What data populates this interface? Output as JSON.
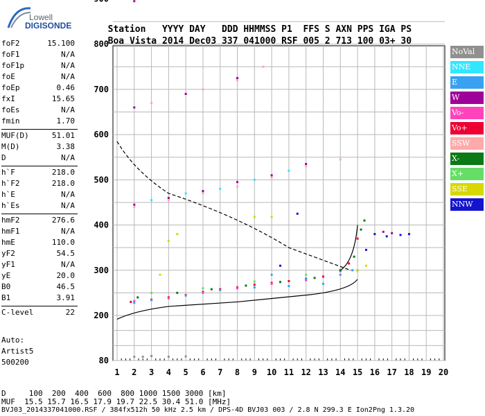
{
  "logo": {
    "brand": "Lowell",
    "product": "DIGISONDE"
  },
  "header": {
    "labels": [
      "Station",
      "YYYY",
      "DAY",
      "DDD",
      "HHMMSS",
      "P1",
      "FFS",
      "S",
      "AXN",
      "PPS",
      "IGA",
      "PS"
    ],
    "values": [
      "Boa Vista",
      "2014",
      "Dec03",
      "337",
      "041000",
      "RSF",
      "005",
      "2",
      "713",
      "100",
      "03+",
      "30"
    ]
  },
  "parameters": {
    "group1": [
      {
        "name": "foF2",
        "value": "15.100"
      },
      {
        "name": "foF1",
        "value": "N/A"
      },
      {
        "name": "foF1p",
        "value": "N/A"
      },
      {
        "name": "foE",
        "value": "N/A"
      },
      {
        "name": "foEp",
        "value": "0.46"
      },
      {
        "name": "fxI",
        "value": "15.65"
      },
      {
        "name": "foEs",
        "value": "N/A"
      },
      {
        "name": "fmin",
        "value": "1.70"
      }
    ],
    "group2": [
      {
        "name": "MUF(D)",
        "value": "51.01"
      },
      {
        "name": "M(D)",
        "value": "3.38"
      },
      {
        "name": "D",
        "value": "N/A"
      }
    ],
    "group3": [
      {
        "name": "h`F",
        "value": "218.0"
      },
      {
        "name": "h`F2",
        "value": "218.0"
      },
      {
        "name": "h`E",
        "value": "N/A"
      },
      {
        "name": "h`Es",
        "value": "N/A"
      }
    ],
    "group4": [
      {
        "name": "hmF2",
        "value": "276.6"
      },
      {
        "name": "hmF1",
        "value": "N/A"
      },
      {
        "name": "hmE",
        "value": "110.0"
      },
      {
        "name": "yF2",
        "value": "54.5"
      },
      {
        "name": "yF1",
        "value": "N/A"
      },
      {
        "name": "yE",
        "value": "20.0"
      },
      {
        "name": "B0",
        "value": "46.5"
      },
      {
        "name": "B1",
        "value": "3.91"
      }
    ],
    "group5": [
      {
        "name": "C-level",
        "value": "22"
      }
    ]
  },
  "autoscaling": {
    "line1": "Auto:",
    "line2": "Artist5",
    "line3": "500200"
  },
  "legend": [
    {
      "label": "NoVal",
      "color": "#909090"
    },
    {
      "label": "NNE",
      "color": "#33e6ff"
    },
    {
      "label": "E",
      "color": "#3aa0f0"
    },
    {
      "label": "W",
      "color": "#a0009a"
    },
    {
      "label": "Vo-",
      "color": "#ff44bb"
    },
    {
      "label": "Vo+",
      "color": "#ee0033"
    },
    {
      "label": "SSW",
      "color": "#ffaaaa"
    },
    {
      "label": "X-",
      "color": "#0b7a16"
    },
    {
      "label": "X+",
      "color": "#66dd66"
    },
    {
      "label": "SSE",
      "color": "#d8d800"
    },
    {
      "label": "NNW",
      "color": "#1414cc"
    }
  ],
  "chart_data": {
    "type": "scatter",
    "x_ticks": [
      "1",
      "2",
      "3",
      "4",
      "5",
      "6",
      "7",
      "8",
      "9",
      "10",
      "11",
      "12",
      "13",
      "14",
      "15",
      "16",
      "17",
      "18",
      "19",
      "20"
    ],
    "y_ticks": [
      "80",
      "200",
      "300",
      "400",
      "500",
      "600",
      "700",
      "800",
      "900"
    ],
    "xlim": [
      1,
      20
    ],
    "ylim": [
      80,
      900
    ],
    "grid": true,
    "series": [
      {
        "name": "Vo+",
        "points": [
          [
            1.8,
            230
          ],
          [
            3,
            235
          ],
          [
            4,
            240
          ],
          [
            5,
            245
          ],
          [
            6,
            252
          ],
          [
            7,
            258
          ],
          [
            8,
            262
          ],
          [
            9,
            268
          ],
          [
            10,
            272
          ],
          [
            11,
            276
          ],
          [
            12,
            280
          ],
          [
            13,
            286
          ],
          [
            14,
            300
          ],
          [
            14.5,
            315
          ],
          [
            15,
            370
          ]
        ]
      },
      {
        "name": "Vo-",
        "points": [
          [
            2,
            232
          ],
          [
            4,
            238
          ],
          [
            6,
            250
          ],
          [
            8,
            260
          ],
          [
            10,
            270
          ],
          [
            12,
            278
          ],
          [
            14,
            298
          ]
        ]
      },
      {
        "name": "E",
        "points": [
          [
            2,
            228
          ],
          [
            3,
            234
          ],
          [
            5,
            244
          ],
          [
            7,
            256
          ],
          [
            9,
            262
          ],
          [
            10,
            290
          ],
          [
            11,
            265
          ],
          [
            12,
            282
          ],
          [
            13,
            270
          ],
          [
            14,
            290
          ],
          [
            14.7,
            300
          ]
        ]
      },
      {
        "name": "X-",
        "points": [
          [
            2.2,
            240
          ],
          [
            4.5,
            250
          ],
          [
            6.5,
            258
          ],
          [
            8.5,
            266
          ],
          [
            10.5,
            274
          ],
          [
            12.5,
            283
          ],
          [
            14,
            300
          ],
          [
            14.8,
            330
          ],
          [
            15.2,
            390
          ],
          [
            15.4,
            410
          ]
        ]
      },
      {
        "name": "X+",
        "points": [
          [
            3,
            250
          ],
          [
            6,
            260
          ],
          [
            9,
            275
          ],
          [
            12,
            290
          ],
          [
            15,
            300
          ]
        ]
      },
      {
        "name": "SSW",
        "points": [
          [
            2,
            440
          ],
          [
            4,
            455
          ],
          [
            6,
            470
          ],
          [
            8,
            485
          ],
          [
            10,
            505
          ],
          [
            12,
            530
          ],
          [
            14,
            545
          ],
          [
            3,
            670
          ],
          [
            6,
            700
          ],
          [
            8,
            720
          ],
          [
            9.5,
            750
          ]
        ]
      },
      {
        "name": "W",
        "points": [
          [
            2,
            445
          ],
          [
            4,
            460
          ],
          [
            6,
            475
          ],
          [
            8,
            495
          ],
          [
            10,
            510
          ],
          [
            12,
            535
          ],
          [
            2,
            660
          ],
          [
            5,
            690
          ],
          [
            8,
            725
          ],
          [
            2,
            895
          ],
          [
            3,
            900
          ],
          [
            17,
            382
          ],
          [
            16.5,
            385
          ]
        ]
      },
      {
        "name": "NNE",
        "points": [
          [
            3,
            455
          ],
          [
            5,
            470
          ],
          [
            7,
            480
          ],
          [
            9,
            500
          ],
          [
            11,
            520
          ]
        ]
      },
      {
        "name": "SSE",
        "points": [
          [
            3.5,
            290
          ],
          [
            4,
            365
          ],
          [
            4.5,
            380
          ],
          [
            9,
            418
          ],
          [
            10,
            418
          ],
          [
            15.5,
            310
          ],
          [
            15,
            298
          ]
        ]
      },
      {
        "name": "NNW",
        "points": [
          [
            15.5,
            345
          ],
          [
            16,
            380
          ],
          [
            16.7,
            375
          ],
          [
            17.5,
            378
          ],
          [
            18,
            380
          ],
          [
            10.5,
            310
          ],
          [
            11.5,
            425
          ]
        ]
      },
      {
        "name": "NoVal",
        "points": [
          [
            2,
            90
          ],
          [
            2.5,
            90
          ],
          [
            3,
            92
          ],
          [
            4,
            90
          ],
          [
            5,
            91
          ]
        ]
      }
    ]
  },
  "footer": {
    "d_line": "D     100  200  400  600  800 1000 1500 3000 [km]",
    "muf_line": "MUF  15.5 15.7 16.5 17.9 19.7 22.5 30.4 51.0 [MHz]",
    "info_line": "BVJ03_2014337041000.RSF / 384fx512h 50 kHz 2.5 km / DPS-4D BVJ03 003 / 2.8 N 299.3 E Ion2Png 1.3.20"
  }
}
